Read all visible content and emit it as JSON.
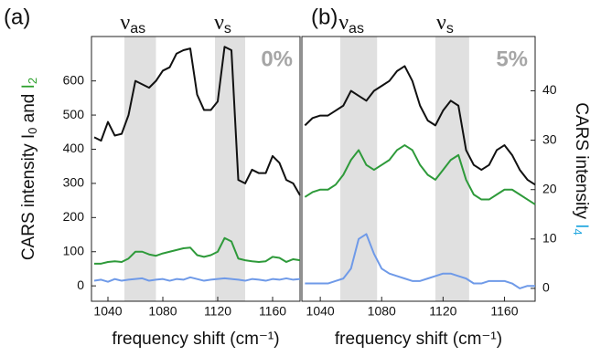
{
  "chart_data": [
    {
      "type": "line",
      "panel_label": "(a)",
      "corner_label": "0%",
      "xlabel": "frequency shift (cm⁻¹)",
      "ylabel_parts": [
        {
          "text": "CARS intensity I",
          "color": "#111111"
        },
        {
          "text": "0",
          "color": "#111111",
          "sub": true
        },
        {
          "text": " and ",
          "color": "#111111"
        },
        {
          "text": "I",
          "color": "#2ca02c"
        },
        {
          "text": "2",
          "color": "#2ca02c",
          "sub": true
        }
      ],
      "yaxis_side": "left",
      "bands": [
        [
          1052,
          1075
        ],
        [
          1118,
          1140
        ]
      ],
      "band_labels": [
        {
          "text": "ν",
          "sub": "as"
        },
        {
          "text": "ν",
          "sub": "s"
        }
      ],
      "x": [
        1030,
        1035,
        1040,
        1045,
        1050,
        1055,
        1060,
        1065,
        1070,
        1075,
        1080,
        1085,
        1090,
        1095,
        1100,
        1105,
        1110,
        1115,
        1120,
        1125,
        1130,
        1135,
        1140,
        1145,
        1150,
        1155,
        1160,
        1165,
        1170,
        1175,
        1180
      ],
      "series": [
        {
          "color": "#111111",
          "values": [
            435,
            425,
            480,
            440,
            445,
            500,
            600,
            590,
            580,
            600,
            630,
            640,
            680,
            690,
            695,
            560,
            515,
            515,
            540,
            700,
            690,
            310,
            300,
            340,
            330,
            330,
            380,
            360,
            310,
            300,
            265
          ]
        },
        {
          "color": "#2e9a3a",
          "values": [
            65,
            65,
            70,
            72,
            70,
            80,
            100,
            100,
            92,
            88,
            95,
            100,
            105,
            110,
            112,
            90,
            85,
            90,
            100,
            140,
            130,
            80,
            75,
            72,
            70,
            72,
            85,
            82,
            70,
            78,
            75
          ]
        },
        {
          "color": "#6f9ae8",
          "values": [
            15,
            18,
            12,
            20,
            15,
            18,
            20,
            22,
            15,
            18,
            20,
            15,
            20,
            18,
            25,
            20,
            15,
            18,
            20,
            22,
            20,
            18,
            15,
            20,
            18,
            15,
            20,
            18,
            22,
            18,
            20
          ]
        }
      ],
      "xlim": [
        1028,
        1180
      ],
      "xticks": [
        1040,
        1080,
        1120,
        1160
      ],
      "ylim": [
        -45,
        730
      ],
      "yticks": [
        0,
        100,
        200,
        300,
        400,
        500,
        600
      ]
    },
    {
      "type": "line",
      "panel_label": "(b)",
      "corner_label": "5%",
      "xlabel": "frequency shift (cm⁻¹)",
      "ylabel_parts": [
        {
          "text": "CARS intensity ",
          "color": "#111111"
        },
        {
          "text": "I",
          "color": "#29a9e0"
        },
        {
          "text": "4",
          "color": "#29a9e0",
          "sub": true
        }
      ],
      "yaxis_side": "right",
      "bands": [
        [
          1053,
          1077
        ],
        [
          1115,
          1137
        ]
      ],
      "band_labels": [
        {
          "text": "ν",
          "sub": "as"
        },
        {
          "text": "ν",
          "sub": "s"
        }
      ],
      "x": [
        1030,
        1035,
        1040,
        1045,
        1050,
        1055,
        1060,
        1065,
        1070,
        1075,
        1080,
        1085,
        1090,
        1095,
        1100,
        1105,
        1110,
        1115,
        1120,
        1125,
        1130,
        1135,
        1140,
        1145,
        1150,
        1155,
        1160,
        1165,
        1170,
        1175,
        1180
      ],
      "series": [
        {
          "color": "#111111",
          "values": [
            33,
            34.5,
            35,
            35,
            36,
            37,
            40,
            39,
            38,
            40,
            41,
            42,
            44,
            45,
            42,
            37,
            34,
            33,
            36,
            38,
            37,
            28,
            25,
            24,
            25,
            28,
            29,
            27,
            24,
            22,
            21
          ]
        },
        {
          "color": "#2e9a3a",
          "values": [
            18.5,
            19.5,
            20,
            20,
            21,
            23,
            26,
            28,
            25,
            24,
            25,
            26,
            28,
            29,
            28,
            25,
            23,
            22,
            24,
            26,
            27,
            22,
            19,
            18,
            18,
            19,
            20,
            20,
            19,
            18,
            17
          ]
        },
        {
          "color": "#6f9ae8",
          "values": [
            1,
            1,
            1,
            1,
            1.5,
            2,
            4,
            10,
            11,
            7,
            4,
            3,
            2.5,
            2,
            1.5,
            1.5,
            2,
            2.5,
            3,
            3,
            2.5,
            2,
            1,
            1,
            1.5,
            1.5,
            1.5,
            1,
            0,
            0.5,
            0.5
          ]
        }
      ],
      "xlim": [
        1028,
        1180
      ],
      "xticks": [
        1040,
        1080,
        1120,
        1160
      ],
      "ylim": [
        -2.6,
        51
      ],
      "yticks": [
        0,
        10,
        20,
        30,
        40
      ]
    }
  ]
}
